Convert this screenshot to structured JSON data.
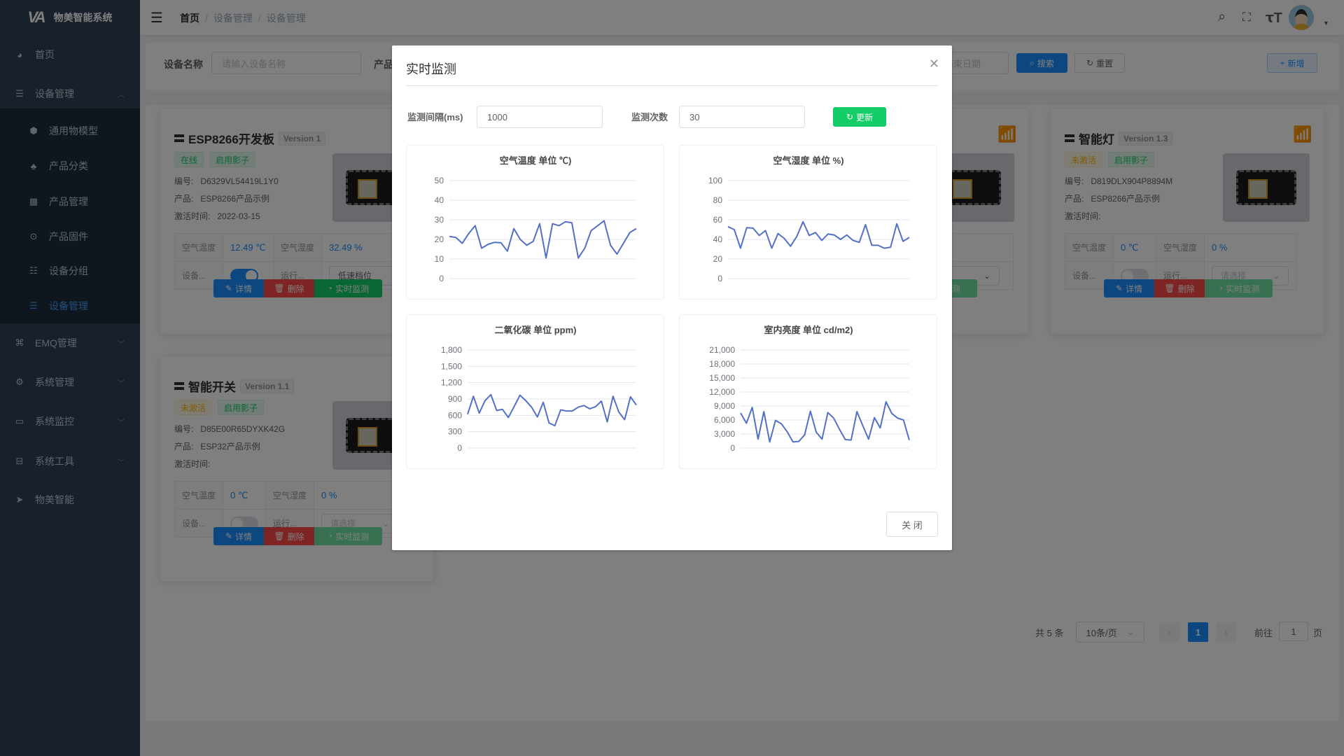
{
  "app": {
    "title": "物美智能系统",
    "logo": "VA"
  },
  "sidebar": {
    "items": [
      {
        "label": "首页",
        "icon": "dashboard-icon"
      },
      {
        "label": "设备管理",
        "icon": "layers-icon",
        "expanded": true,
        "children": [
          {
            "label": "通用物模型",
            "icon": "cube-icon"
          },
          {
            "label": "产品分类",
            "icon": "tree-icon"
          },
          {
            "label": "产品管理",
            "icon": "grid-icon"
          },
          {
            "label": "产品固件",
            "icon": "chip-icon"
          },
          {
            "label": "设备分组",
            "icon": "group-icon"
          },
          {
            "label": "设备管理",
            "icon": "server-icon",
            "active": true
          }
        ]
      },
      {
        "label": "EMQ管理",
        "icon": "network-icon"
      },
      {
        "label": "系统管理",
        "icon": "gear-icon"
      },
      {
        "label": "系统监控",
        "icon": "monitor-icon"
      },
      {
        "label": "系统工具",
        "icon": "toolbox-icon"
      },
      {
        "label": "物美智能",
        "icon": "paper-plane-icon"
      }
    ]
  },
  "header": {
    "breadcrumb": [
      "首页",
      "设备管理",
      "设备管理"
    ]
  },
  "search": {
    "device_name_label": "设备名称",
    "device_name_placeholder": "请输入设备名称",
    "product_label": "产品",
    "end_date_placeholder": "结束日期",
    "search_label": "搜索",
    "reset_label": "重置",
    "add_label": "新增"
  },
  "cards": [
    {
      "name": "ESP8266开发板",
      "version": "Version 1",
      "status": "在线",
      "status_color": "#13ce66",
      "shadow": "启用影子",
      "serial_label": "编号:",
      "serial": "D6329VL54419L1Y0",
      "product_label": "产品:",
      "product": "ESP8266产品示例",
      "active_label": "激活时间:",
      "active_time": "2022-03-15",
      "temp_label": "空气温度",
      "temp": "12.49 ℃",
      "hum_label": "空气湿度",
      "hum": "32.49 %",
      "switch_label": "设备...",
      "switch_on": true,
      "run_label": "运行...",
      "run_value": "低速档位",
      "detail": "详情",
      "delete": "删除",
      "monitor": "实时监测"
    },
    {
      "monitor": "实时监测"
    },
    {
      "name": "智能灯",
      "version": "Version 1.3",
      "status": "未激活",
      "status_color": "#ffba00",
      "shadow": "启用影子",
      "serial_label": "编号:",
      "serial": "D819DLX904P8894M",
      "product_label": "产品:",
      "product": "ESP8266产品示例",
      "active_label": "激活时间:",
      "active_time": "",
      "temp_label": "空气温度",
      "temp": "0 ℃",
      "hum_label": "空气湿度",
      "hum": "0 %",
      "switch_label": "设备...",
      "switch_on": false,
      "run_label": "运行...",
      "run_placeholder": "请选择",
      "detail": "详情",
      "delete": "删除",
      "monitor": "实时监测"
    },
    {
      "name": "智能开关",
      "version": "Version 1.1",
      "status": "未激活",
      "status_color": "#ffba00",
      "shadow": "启用影子",
      "serial_label": "编号:",
      "serial": "D85E00R65DYXK42G",
      "product_label": "产品:",
      "product": "ESP32产品示例",
      "active_label": "激活时间:",
      "active_time": "",
      "temp_label": "空气温度",
      "temp": "0 ℃",
      "hum_label": "空气湿度",
      "hum": "0 %",
      "switch_label": "设备...",
      "switch_on": false,
      "run_label": "运行...",
      "run_placeholder": "请选择",
      "detail": "详情",
      "delete": "删除",
      "monitor": "实时监测"
    }
  ],
  "pagination": {
    "total": "共 5 条",
    "page_size": "10条/页",
    "current": "1",
    "goto_label": "前往",
    "goto_value": "1",
    "page_suffix": "页"
  },
  "dialog": {
    "title": "实时监测",
    "interval_label": "监测间隔(ms)",
    "interval_value": "1000",
    "count_label": "监测次数",
    "count_value": "30",
    "update_label": "更新",
    "update_color": "#13ce66",
    "close_label": "关 闭"
  },
  "chart_data": [
    {
      "type": "line",
      "title": "空气温度 单位 ℃)",
      "ylim": [
        0,
        50
      ],
      "yticks": [
        "0",
        "10",
        "20",
        "30",
        "40",
        "50"
      ],
      "ytick_values": [
        0,
        10,
        20,
        30,
        40,
        50
      ],
      "grid": true,
      "color": "#5470c6",
      "values": [
        21.5,
        21,
        18,
        23,
        27,
        15.5,
        17.5,
        18.5,
        18.3,
        14,
        25.5,
        20,
        17,
        19,
        28,
        10.5,
        28,
        27,
        29,
        28.5,
        10.5,
        15.5,
        24.5,
        27,
        29.5,
        17,
        12.5,
        18,
        23.5,
        25.5
      ]
    },
    {
      "type": "line",
      "title": "空气湿度 单位 %)",
      "ylim": [
        0,
        100
      ],
      "yticks": [
        "0",
        "20",
        "40",
        "60",
        "80",
        "100"
      ],
      "ytick_values": [
        0,
        20,
        40,
        60,
        80,
        100
      ],
      "grid": true,
      "color": "#5470c6",
      "values": [
        53,
        50,
        31,
        52,
        51.5,
        44,
        49,
        31,
        46,
        41,
        33,
        43,
        58,
        44,
        47,
        39,
        45.5,
        44.5,
        40,
        44.5,
        39,
        37,
        55,
        34,
        34,
        31,
        32,
        56,
        38,
        42
      ]
    },
    {
      "type": "line",
      "title": "二氧化碳 单位 ppm)",
      "ylim": [
        0,
        1800
      ],
      "yticks": [
        "0",
        "300",
        "600",
        "900",
        "1,200",
        "1,500",
        "1,800"
      ],
      "ytick_values": [
        0,
        300,
        600,
        900,
        1200,
        1500,
        1800
      ],
      "grid": true,
      "color": "#5470c6",
      "values": [
        620,
        950,
        640,
        870,
        980,
        690,
        710,
        560,
        760,
        970,
        870,
        750,
        570,
        840,
        460,
        410,
        700,
        680,
        680,
        750,
        780,
        720,
        760,
        860,
        480,
        950,
        660,
        520,
        940,
        790
      ]
    },
    {
      "type": "line",
      "title": "室内亮度 单位 cd/m2)",
      "ylim": [
        0,
        21000
      ],
      "yticks": [
        "0",
        "3,000",
        "6,000",
        "9,000",
        "12,000",
        "15,000",
        "18,000",
        "21,000"
      ],
      "ytick_values": [
        0,
        3000,
        6000,
        9000,
        12000,
        15000,
        18000,
        21000
      ],
      "grid": true,
      "color": "#5470c6",
      "values": [
        7500,
        5300,
        8700,
        1900,
        7800,
        1300,
        5900,
        5200,
        3500,
        1300,
        1400,
        2800,
        7900,
        3400,
        1900,
        7600,
        6400,
        4000,
        1800,
        1700,
        7800,
        4800,
        1900,
        6500,
        4300,
        9900,
        7400,
        6400,
        6000,
        1700
      ]
    }
  ]
}
